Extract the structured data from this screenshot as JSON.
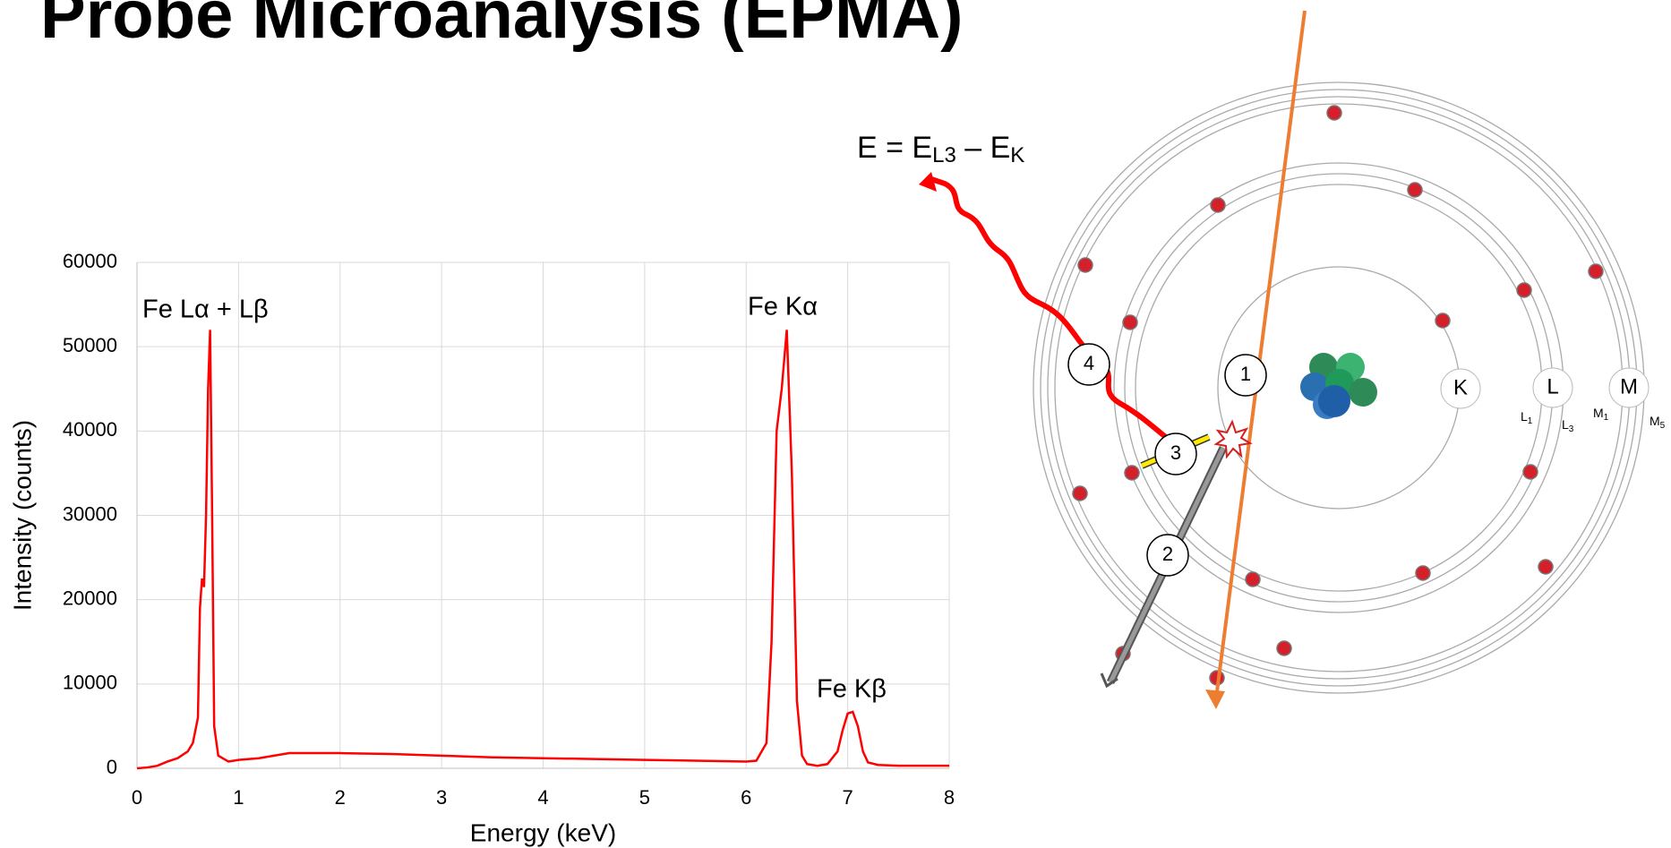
{
  "title": "Probe Microanalysis (EPMA)",
  "chart_data": {
    "type": "line",
    "x_label": "Energy (keV)",
    "y_label": "Intensity (counts)",
    "x": [
      0,
      0.1,
      0.2,
      0.3,
      0.4,
      0.5,
      0.55,
      0.6,
      0.62,
      0.64,
      0.66,
      0.68,
      0.7,
      0.72,
      0.74,
      0.76,
      0.8,
      0.9,
      1.0,
      1.2,
      1.5,
      2.0,
      2.5,
      3.0,
      3.5,
      4.0,
      4.5,
      5.0,
      5.5,
      6.0,
      6.1,
      6.2,
      6.25,
      6.3,
      6.35,
      6.4,
      6.45,
      6.5,
      6.55,
      6.6,
      6.7,
      6.8,
      6.9,
      6.95,
      7.0,
      7.05,
      7.1,
      7.15,
      7.2,
      7.3,
      7.5,
      8.0
    ],
    "series": [
      {
        "color": "#ff0000",
        "values": [
          0,
          100,
          300,
          800,
          1200,
          2000,
          3000,
          6000,
          19000,
          22500,
          21500,
          30000,
          45000,
          52000,
          30000,
          5000,
          1500,
          800,
          1000,
          1200,
          1800,
          1800,
          1700,
          1500,
          1300,
          1200,
          1100,
          1000,
          900,
          800,
          900,
          3000,
          15000,
          40000,
          45000,
          52000,
          35000,
          8000,
          1500,
          500,
          300,
          500,
          2000,
          4500,
          6500,
          6700,
          5000,
          2000,
          700,
          400,
          300,
          300
        ]
      }
    ],
    "xlim": [
      0,
      8
    ],
    "ylim": [
      0,
      60000
    ],
    "xticks": [
      0,
      1,
      2,
      3,
      4,
      5,
      6,
      7,
      8
    ],
    "yticks": [
      0,
      10000,
      20000,
      30000,
      40000,
      50000,
      60000
    ],
    "grid": true,
    "annotations": [
      "Fe Lα + Lβ",
      "Fe Kα",
      "Fe Kβ"
    ]
  },
  "diagram": {
    "equation": [
      "E = E",
      "L3",
      " – E",
      "K"
    ],
    "shells": [
      "K",
      "L",
      "M"
    ],
    "subshells": [
      {
        "main": "L",
        "sub": "1"
      },
      {
        "main": "L",
        "sub": "3"
      },
      {
        "main": "M",
        "sub": "1"
      },
      {
        "main": "M",
        "sub": "5"
      }
    ],
    "steps": [
      "1",
      "2",
      "3",
      "4"
    ]
  }
}
